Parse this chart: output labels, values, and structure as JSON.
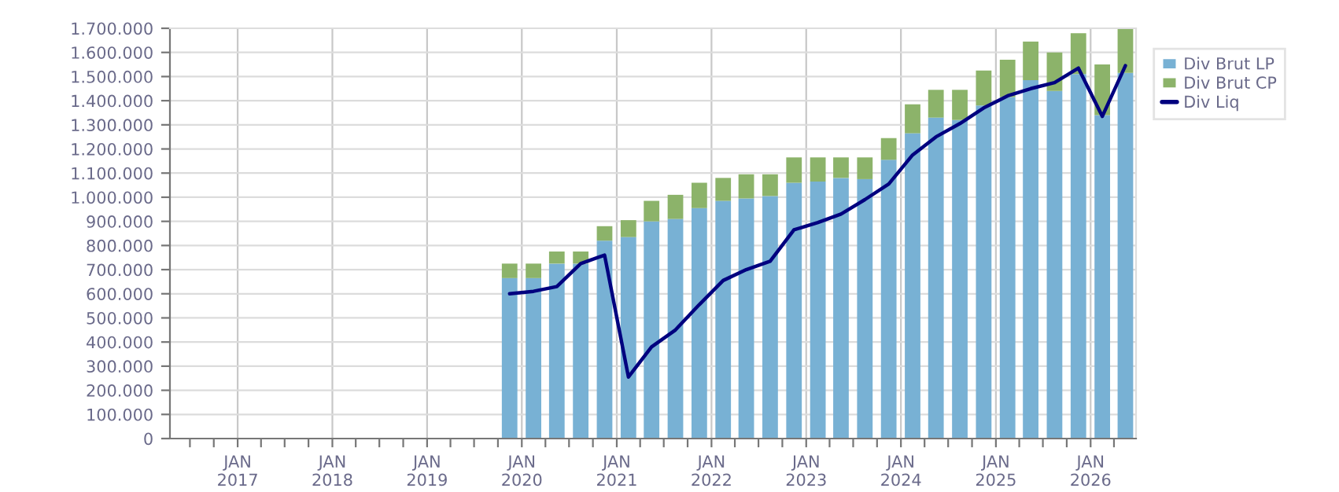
{
  "chart_data": {
    "type": "bar",
    "stacked": true,
    "x": [
      "2019-11-15",
      "2020-02-15",
      "2020-05-15",
      "2020-08-15",
      "2020-11-15",
      "2021-02-15",
      "2021-05-15",
      "2021-08-15",
      "2021-11-15",
      "2022-02-15",
      "2022-05-15",
      "2022-08-15",
      "2022-11-15",
      "2023-02-15",
      "2023-05-15",
      "2023-08-15",
      "2023-11-15",
      "2024-02-15",
      "2024-05-15",
      "2024-08-15",
      "2024-11-15",
      "2025-02-15",
      "2025-05-15",
      "2025-08-15",
      "2025-11-15",
      "2026-02-15",
      "2026-05-15"
    ],
    "series": [
      {
        "name": "Div Brut LP",
        "color": "#78b1d4",
        "values": [
          665000,
          665000,
          725000,
          725000,
          820000,
          835000,
          900000,
          910000,
          955000,
          985000,
          995000,
          1005000,
          1060000,
          1065000,
          1080000,
          1075000,
          1155000,
          1265000,
          1330000,
          1320000,
          1380000,
          1415000,
          1485000,
          1440000,
          1510000,
          1340000,
          1515000
        ]
      },
      {
        "name": "Div Brut CP",
        "color": "#8cb36a",
        "values": [
          60000,
          60000,
          50000,
          50000,
          60000,
          70000,
          85000,
          100000,
          105000,
          95000,
          100000,
          90000,
          105000,
          100000,
          85000,
          90000,
          90000,
          120000,
          115000,
          125000,
          145000,
          155000,
          160000,
          160000,
          170000,
          210000,
          185000
        ]
      },
      {
        "name": "Div Liq",
        "type": "line",
        "color": "#00007f",
        "values": [
          600000,
          610000,
          630000,
          725000,
          760000,
          255000,
          380000,
          450000,
          555000,
          655000,
          700000,
          735000,
          865000,
          895000,
          930000,
          990000,
          1055000,
          1175000,
          1250000,
          1305000,
          1370000,
          1420000,
          1450000,
          1475000,
          1535000,
          1335000,
          1545000
        ]
      }
    ],
    "xlim": [
      "2016-04-15",
      "2026-06-25"
    ],
    "xticks": [
      {
        "value": "2016-07-01",
        "label": null
      },
      {
        "value": "2016-10-01",
        "label": null
      },
      {
        "value": "2017-01-01",
        "label": "JAN\n2017"
      },
      {
        "value": "2017-04-01",
        "label": null
      },
      {
        "value": "2017-07-01",
        "label": null
      },
      {
        "value": "2017-10-01",
        "label": null
      },
      {
        "value": "2018-01-01",
        "label": "JAN\n2018"
      },
      {
        "value": "2018-04-01",
        "label": null
      },
      {
        "value": "2018-07-01",
        "label": null
      },
      {
        "value": "2018-10-01",
        "label": null
      },
      {
        "value": "2019-01-01",
        "label": "JAN\n2019"
      },
      {
        "value": "2019-04-01",
        "label": null
      },
      {
        "value": "2019-07-01",
        "label": null
      },
      {
        "value": "2019-10-01",
        "label": null
      },
      {
        "value": "2020-01-01",
        "label": "JAN\n2020"
      },
      {
        "value": "2020-04-01",
        "label": null
      },
      {
        "value": "2020-07-01",
        "label": null
      },
      {
        "value": "2020-10-01",
        "label": null
      },
      {
        "value": "2021-01-01",
        "label": "JAN\n2021"
      },
      {
        "value": "2021-04-01",
        "label": null
      },
      {
        "value": "2021-07-01",
        "label": null
      },
      {
        "value": "2021-10-01",
        "label": null
      },
      {
        "value": "2022-01-01",
        "label": "JAN\n2022"
      },
      {
        "value": "2022-04-01",
        "label": null
      },
      {
        "value": "2022-07-01",
        "label": null
      },
      {
        "value": "2022-10-01",
        "label": null
      },
      {
        "value": "2023-01-01",
        "label": "JAN\n2023"
      },
      {
        "value": "2023-04-01",
        "label": null
      },
      {
        "value": "2023-07-01",
        "label": null
      },
      {
        "value": "2023-10-01",
        "label": null
      },
      {
        "value": "2024-01-01",
        "label": "JAN\n2024"
      },
      {
        "value": "2024-04-01",
        "label": null
      },
      {
        "value": "2024-07-01",
        "label": null
      },
      {
        "value": "2024-10-01",
        "label": null
      },
      {
        "value": "2025-01-01",
        "label": "JAN\n2025"
      },
      {
        "value": "2025-04-01",
        "label": null
      },
      {
        "value": "2025-07-01",
        "label": null
      },
      {
        "value": "2025-10-01",
        "label": null
      },
      {
        "value": "2026-01-01",
        "label": "JAN\n2026"
      },
      {
        "value": "2026-04-01",
        "label": null
      }
    ],
    "ylim": [
      0,
      1700000
    ],
    "yticks": [
      {
        "value": 0,
        "label": "0"
      },
      {
        "value": 100000,
        "label": "100.000"
      },
      {
        "value": 200000,
        "label": "200.000"
      },
      {
        "value": 300000,
        "label": "300.000"
      },
      {
        "value": 400000,
        "label": "400.000"
      },
      {
        "value": 500000,
        "label": "500.000"
      },
      {
        "value": 600000,
        "label": "600.000"
      },
      {
        "value": 700000,
        "label": "700.000"
      },
      {
        "value": 800000,
        "label": "800.000"
      },
      {
        "value": 900000,
        "label": "900.000"
      },
      {
        "value": 1000000,
        "label": "1.000.000"
      },
      {
        "value": 1100000,
        "label": "1.100.000"
      },
      {
        "value": 1200000,
        "label": "1.200.000"
      },
      {
        "value": 1300000,
        "label": "1.300.000"
      },
      {
        "value": 1400000,
        "label": "1.400.000"
      },
      {
        "value": 1500000,
        "label": "1.500.000"
      },
      {
        "value": 1600000,
        "label": "1.600.000"
      },
      {
        "value": 1700000,
        "label": "1.700.000"
      }
    ],
    "grid": true,
    "legend": "top right"
  }
}
